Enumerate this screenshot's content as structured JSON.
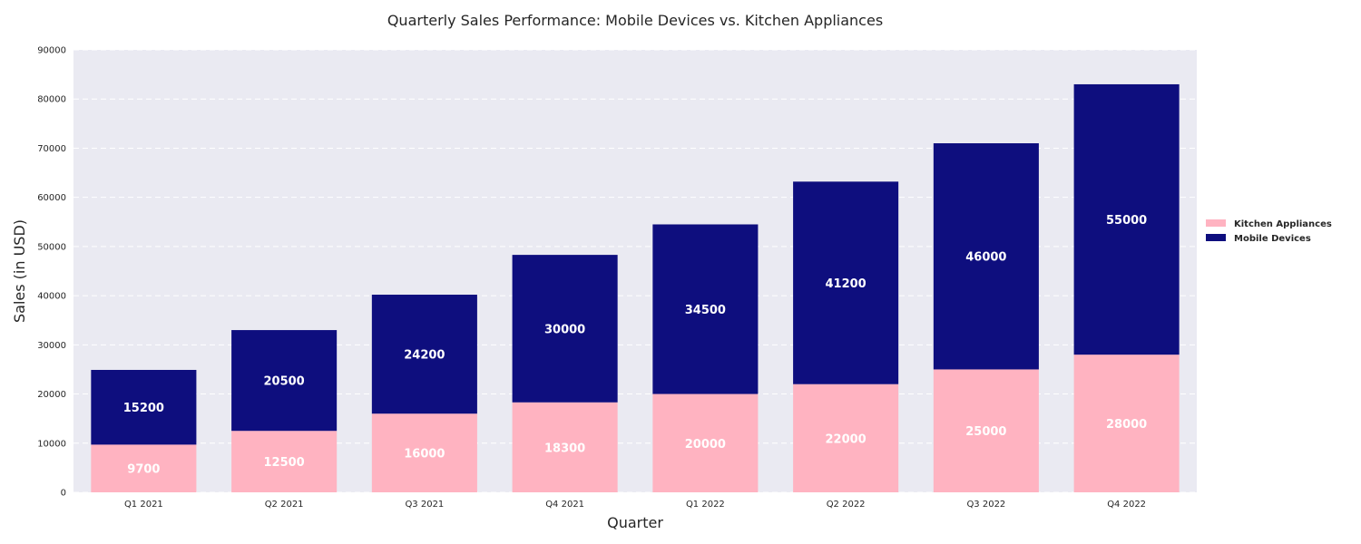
{
  "chart_data": {
    "type": "bar",
    "stacked": true,
    "title": "Quarterly Sales Performance: Mobile Devices vs. Kitchen Appliances",
    "xlabel": "Quarter",
    "ylabel": "Sales (in USD)",
    "ylim": [
      0,
      90000
    ],
    "yticks": [
      0,
      10000,
      20000,
      30000,
      40000,
      50000,
      60000,
      70000,
      80000,
      90000
    ],
    "grid": true,
    "legend_position": "right",
    "categories": [
      "Q1 2021",
      "Q2 2021",
      "Q3 2021",
      "Q4 2021",
      "Q1 2022",
      "Q2 2022",
      "Q3 2022",
      "Q4 2022"
    ],
    "series": [
      {
        "name": "Kitchen Appliances",
        "color": "#ffb3c1",
        "values": [
          9700,
          12500,
          16000,
          18300,
          20000,
          22000,
          25000,
          28000
        ]
      },
      {
        "name": "Mobile Devices",
        "color": "#0e0e7e",
        "values": [
          15200,
          20500,
          24200,
          30000,
          34500,
          41200,
          46000,
          55000
        ]
      }
    ],
    "plot_background": "#eaeaf2",
    "gridline_color": "#ffffff",
    "data_label_color": "#ffffff"
  }
}
